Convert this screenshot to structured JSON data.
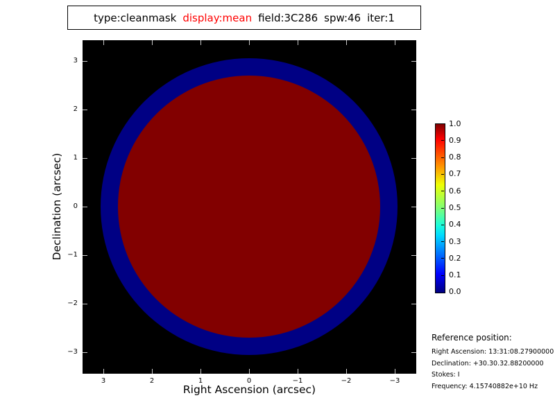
{
  "colors": {
    "figure_background": "#ffffff",
    "plot_background": "#000000",
    "mask_low": "#000084",
    "mask_high": "#820000",
    "title_accent": "#ff0000",
    "tick_mark": "#c8c8c8"
  },
  "title": {
    "type": "type:cleanmask",
    "display": "display:mean",
    "field": "field:3C286",
    "spw": "spw:46",
    "iter": "iter:1"
  },
  "axes": {
    "xlabel": "Right Ascension (arcsec)",
    "ylabel": "Declination (arcsec)",
    "x_tick_labels": [
      "3",
      "2",
      "1",
      "0",
      "−1",
      "−2",
      "−3"
    ],
    "y_tick_labels": [
      "3",
      "2",
      "1",
      "0",
      "−1",
      "−2",
      "−3"
    ]
  },
  "colorbar": {
    "labels": [
      "1.0",
      "0.9",
      "0.8",
      "0.7",
      "0.6",
      "0.5",
      "0.4",
      "0.3",
      "0.2",
      "0.1",
      "0.0"
    ]
  },
  "reference": {
    "heading": "Reference position:",
    "lines": [
      "Right Ascension: 13:31:08.27900000",
      "Declination: +30.30.32.88200000",
      "Stokes: I",
      "Frequency: 4.15740882e+10 Hz"
    ]
  },
  "chart_data": {
    "type": "heatmap",
    "title": "type:cleanmask display:mean field:3C286 spw:46 iter:1",
    "xlabel": "Right Ascension (arcsec)",
    "ylabel": "Declination (arcsec)",
    "x_ticks": [
      3,
      2,
      1,
      0,
      -1,
      -2,
      -3
    ],
    "y_ticks": [
      3,
      2,
      1,
      0,
      -1,
      -2,
      -3
    ],
    "xlim": [
      3.45,
      -3.45
    ],
    "ylim": [
      -3.45,
      3.45
    ],
    "grid": false,
    "legend": null,
    "colormap": "jet",
    "colorbar": {
      "min": 0.0,
      "max": 1.0,
      "tick_step": 0.1,
      "position": "right"
    },
    "plot_background_color": "#000000",
    "regions": [
      {
        "name": "outer-annulus",
        "shape": "filled-circle",
        "center_arcsec": [
          0,
          0
        ],
        "radius_arcsec": 3.06,
        "value": 0.0,
        "color": "#000084"
      },
      {
        "name": "inner-disk",
        "shape": "filled-circle",
        "center_arcsec": [
          0,
          0
        ],
        "radius_arcsec": 2.7,
        "value": 1.0,
        "color": "#820000"
      }
    ]
  }
}
